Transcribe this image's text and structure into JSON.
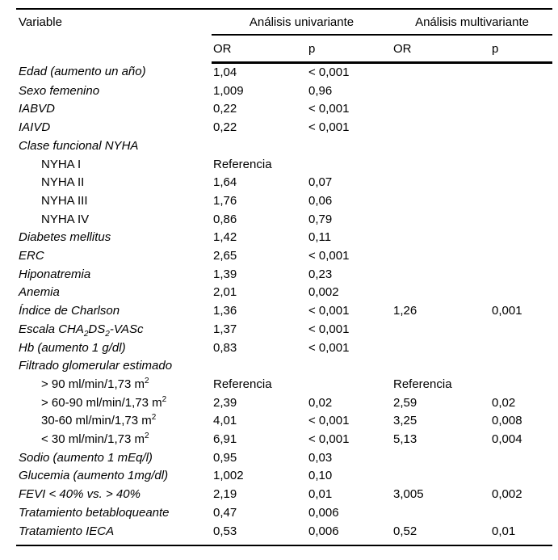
{
  "page": {
    "background_color": "#ffffff",
    "text_color": "#000000",
    "rule_color": "#000000"
  },
  "table": {
    "variable_col_header": "Variable",
    "group_headers": [
      {
        "label": "Análisis univariante"
      },
      {
        "label": "Análisis multivariante"
      }
    ],
    "sub_headers": [
      "OR",
      "p",
      "OR",
      "p"
    ],
    "rows": [
      {
        "label": "Edad (aumento un año)",
        "style": "italic",
        "cells": [
          "1,04",
          "< 0,001",
          "",
          ""
        ]
      },
      {
        "label": "Sexo femenino",
        "style": "italic",
        "cells": [
          "1,009",
          "0,96",
          "",
          ""
        ]
      },
      {
        "label": "IABVD",
        "style": "italic",
        "cells": [
          "0,22",
          "< 0,001",
          "",
          ""
        ]
      },
      {
        "label": "IAIVD",
        "style": "italic",
        "cells": [
          "0,22",
          "< 0,001",
          "",
          ""
        ]
      },
      {
        "label": "Clase funcional NYHA",
        "style": "italic",
        "cells": [
          "",
          "",
          "",
          ""
        ]
      },
      {
        "label": "NYHA I",
        "style": "indent",
        "cells": [
          "Referencia",
          "",
          "",
          ""
        ]
      },
      {
        "label": "NYHA II",
        "style": "indent",
        "cells": [
          "1,64",
          "0,07",
          "",
          ""
        ]
      },
      {
        "label": "NYHA III",
        "style": "indent",
        "cells": [
          "1,76",
          "0,06",
          "",
          ""
        ]
      },
      {
        "label": "NYHA IV",
        "style": "indent",
        "cells": [
          "0,86",
          "0,79",
          "",
          ""
        ]
      },
      {
        "label": "Diabetes mellitus",
        "style": "italic",
        "cells": [
          "1,42",
          "0,11",
          "",
          ""
        ]
      },
      {
        "label": "ERC",
        "style": "italic",
        "cells": [
          "2,65",
          "< 0,001",
          "",
          ""
        ]
      },
      {
        "label": "Hiponatremia",
        "style": "italic",
        "cells": [
          "1,39",
          "0,23",
          "",
          ""
        ]
      },
      {
        "label": "Anemia",
        "style": "italic",
        "cells": [
          "2,01",
          "0,002",
          "",
          ""
        ]
      },
      {
        "label": "Índice de Charlson",
        "style": "italic",
        "cells": [
          "1,36",
          "< 0,001",
          "1,26",
          "0,001"
        ]
      },
      {
        "label": "Escala CHA~2~DS~2~-VASc",
        "style": "italic",
        "cells": [
          "1,37",
          "< 0,001",
          "",
          ""
        ]
      },
      {
        "label": "Hb (aumento 1 g/dl)",
        "style": "italic",
        "cells": [
          "0,83",
          "< 0,001",
          "",
          ""
        ]
      },
      {
        "label": "Filtrado glomerular estimado",
        "style": "italic",
        "cells": [
          "",
          "",
          "",
          ""
        ]
      },
      {
        "label": "> 90 ml/min/1,73 m^2^",
        "style": "indent",
        "cells": [
          "Referencia",
          "",
          "Referencia",
          ""
        ]
      },
      {
        "label": "> 60-90 ml/min/1,73 m^2^",
        "style": "indent",
        "cells": [
          "2,39",
          "0,02",
          "2,59",
          "0,02"
        ]
      },
      {
        "label": "30-60 ml/min/1,73 m^2^",
        "style": "indent",
        "cells": [
          "4,01",
          "< 0,001",
          "3,25",
          "0,008"
        ]
      },
      {
        "label": "< 30 ml/min/1,73 m^2^",
        "style": "indent",
        "cells": [
          "6,91",
          "< 0,001",
          "5,13",
          "0,004"
        ]
      },
      {
        "label": "Sodio (aumento 1 mEq/l)",
        "style": "italic",
        "cells": [
          "0,95",
          "0,03",
          "",
          ""
        ]
      },
      {
        "label": "Glucemia (aumento 1mg/dl)",
        "style": "italic",
        "cells": [
          "1,002",
          "0,10",
          "",
          ""
        ]
      },
      {
        "label": "FEVI < 40% vs. > 40%",
        "style": "italic",
        "cells": [
          "2,19",
          "0,01",
          "3,005",
          "0,002"
        ]
      },
      {
        "label": "Tratamiento betabloqueante",
        "style": "italic",
        "cells": [
          "0,47",
          "0,006",
          "",
          ""
        ]
      },
      {
        "label": "Tratamiento IECA",
        "style": "italic",
        "cells": [
          "0,53",
          "0,006",
          "0,52",
          "0,01"
        ]
      }
    ]
  }
}
